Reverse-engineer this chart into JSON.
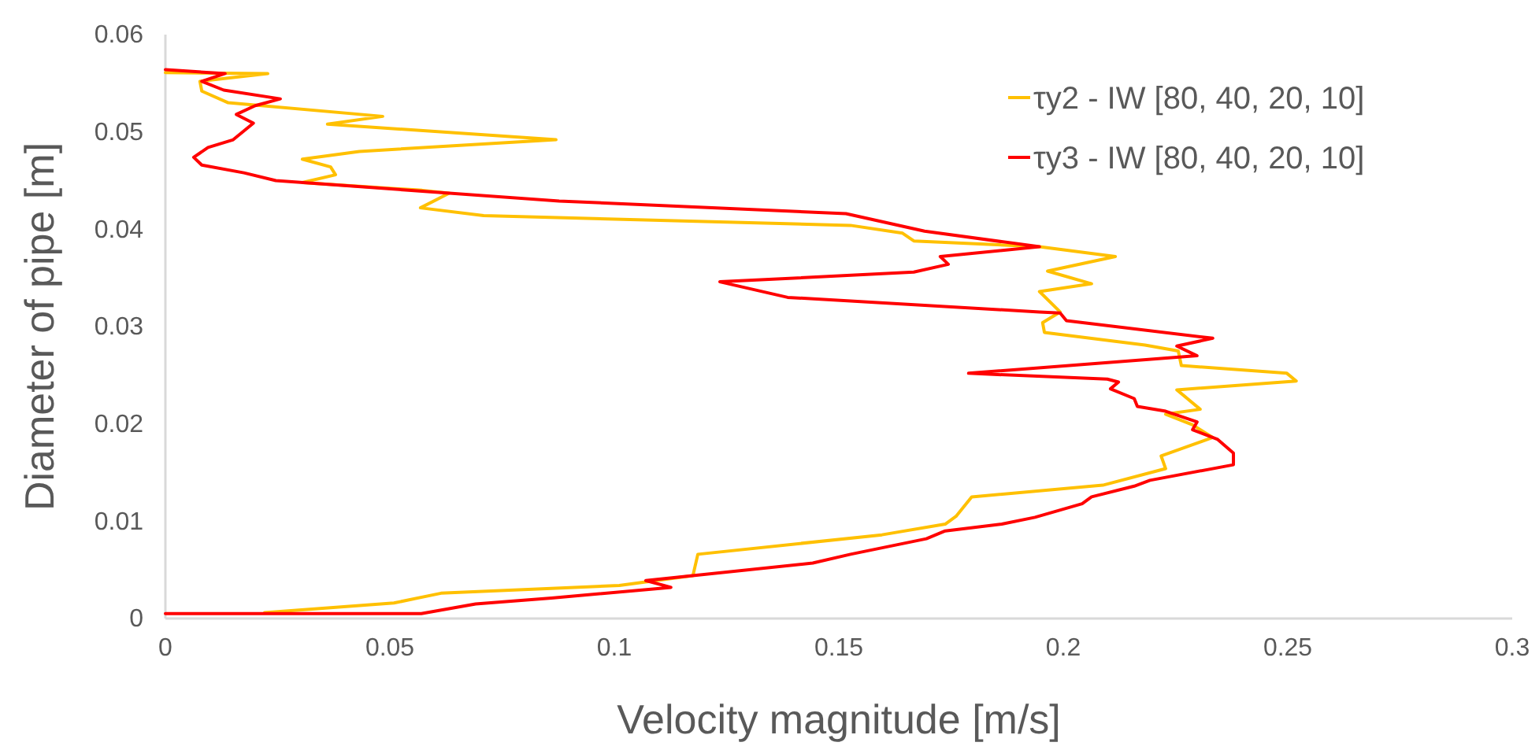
{
  "chart_data": {
    "type": "line",
    "xlabel": "Velocity magnitude [m/s]",
    "ylabel": "Diameter of pipe [m]",
    "xlim": [
      0,
      0.3
    ],
    "xticks": [
      0,
      0.05,
      0.1,
      0.15,
      0.2,
      0.25,
      0.3
    ],
    "ylim": [
      0,
      0.06
    ],
    "yticks": [
      0,
      0.01,
      0.02,
      0.03,
      0.04,
      0.05,
      0.06
    ],
    "grid": false,
    "legend": "top right",
    "marker": "none",
    "line_style": "solid",
    "series": [
      {
        "name": "τy2 - IW [80, 40, 20, 10]",
        "color": "#ffc000",
        "x": [
          0.0221,
          0.0509,
          0.0614,
          0.1011,
          0.1175,
          0.1186,
          0.1596,
          0.1737,
          0.1761,
          0.1796,
          0.2088,
          0.2228,
          0.2218,
          0.2333,
          0.2288,
          0.2228,
          0.2305,
          0.2253,
          0.2519,
          0.2498,
          0.2263,
          0.2256,
          0.2182,
          0.1958,
          0.1954,
          0.1993,
          0.1947,
          0.2063,
          0.1965,
          0.2116,
          0.1947,
          0.1667,
          0.1642,
          0.1526,
          0.0709,
          0.0568,
          0.0632,
          0.0572,
          0.0305,
          0.0379,
          0.0368,
          0.0305,
          0.0432,
          0.087,
          0.0361,
          0.0484,
          0.014,
          0.0081,
          0.0077,
          0.0228,
          0
        ],
        "values": [
          0.0006,
          0.0016,
          0.0026,
          0.0034,
          0.0044,
          0.0066,
          0.0086,
          0.0097,
          0.0105,
          0.0125,
          0.0137,
          0.0154,
          0.0167,
          0.0186,
          0.0199,
          0.021,
          0.0215,
          0.0235,
          0.0244,
          0.0252,
          0.026,
          0.0275,
          0.0281,
          0.0294,
          0.0304,
          0.0315,
          0.0336,
          0.0344,
          0.0357,
          0.0372,
          0.0382,
          0.0388,
          0.0396,
          0.0404,
          0.0414,
          0.0422,
          0.0437,
          0.044,
          0.0448,
          0.0456,
          0.0464,
          0.0472,
          0.048,
          0.0492,
          0.0508,
          0.0516,
          0.053,
          0.0542,
          0.0552,
          0.056,
          0.0561
        ]
      },
      {
        "name": "τy3 - IW [80, 40, 20, 10]",
        "color": "#ff0000",
        "x": [
          0,
          0.057,
          0.0691,
          0.086,
          0.1126,
          0.107,
          0.1442,
          0.1526,
          0.1695,
          0.1737,
          0.1863,
          0.1937,
          0.2042,
          0.2063,
          0.2158,
          0.2193,
          0.2379,
          0.2379,
          0.2344,
          0.2288,
          0.2298,
          0.2228,
          0.2165,
          0.2158,
          0.2105,
          0.2123,
          0.2098,
          0.1789,
          0.2298,
          0.2253,
          0.2333,
          0.2007,
          0.1993,
          0.1947,
          0.1386,
          0.1235,
          0.1667,
          0.1744,
          0.1726,
          0.1947,
          0.1691,
          0.1516,
          0.0877,
          0.0246,
          0.0175,
          0.0081,
          0.0063,
          0.0095,
          0.0151,
          0.0196,
          0.0158,
          0.02,
          0.0256,
          0.013,
          0.0081,
          0.0133,
          0
        ],
        "values": [
          0.0005,
          0.0005,
          0.0015,
          0.0021,
          0.0032,
          0.0039,
          0.0057,
          0.0066,
          0.0082,
          0.009,
          0.0097,
          0.0104,
          0.0118,
          0.0125,
          0.0136,
          0.0142,
          0.0158,
          0.017,
          0.0184,
          0.0194,
          0.0202,
          0.0213,
          0.0218,
          0.0226,
          0.0236,
          0.0243,
          0.0246,
          0.0252,
          0.027,
          0.028,
          0.0288,
          0.0306,
          0.0314,
          0.0315,
          0.033,
          0.0346,
          0.0356,
          0.0364,
          0.0372,
          0.0382,
          0.0398,
          0.0416,
          0.0429,
          0.045,
          0.0458,
          0.0466,
          0.0474,
          0.0484,
          0.0492,
          0.0509,
          0.0518,
          0.0527,
          0.0534,
          0.0543,
          0.0552,
          0.056,
          0.0564
        ]
      }
    ]
  }
}
